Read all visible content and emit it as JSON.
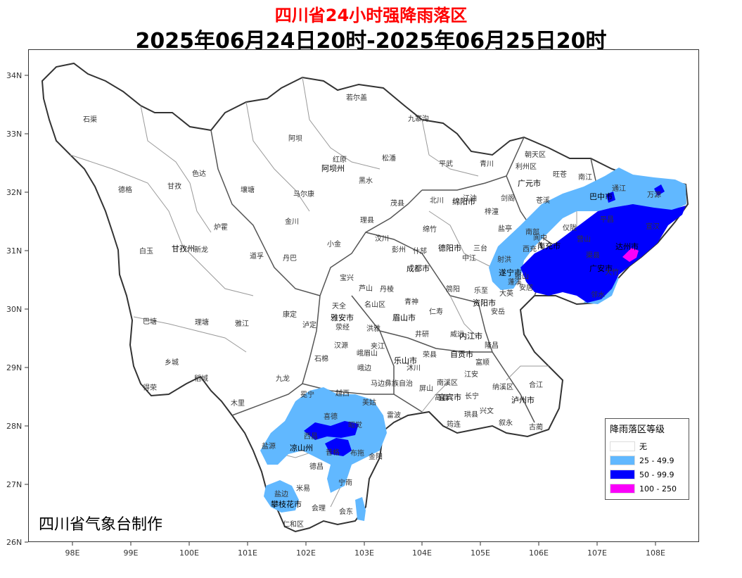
{
  "header": {
    "title": "四川省24小时强降雨落区",
    "period": "2025年06月24日20时-2025年06月25日20时"
  },
  "axes": {
    "lat_labels": [
      "34N",
      "33N",
      "32N",
      "31N",
      "30N",
      "29N",
      "28N",
      "27N",
      "26N"
    ],
    "lon_labels": [
      "98E",
      "99E",
      "100E",
      "101E",
      "102E",
      "103E",
      "104E",
      "105E",
      "106E",
      "107E",
      "108E"
    ]
  },
  "credit": "四川省气象台制作",
  "legend": {
    "title": "降雨落区等级",
    "items": [
      {
        "label": "无",
        "color": "#ffffff"
      },
      {
        "label": "25 - 49.9",
        "color": "#61b8ff"
      },
      {
        "label": "50 - 99.9",
        "color": "#0000fe"
      },
      {
        "label": "100 - 250",
        "color": "#fa00fa"
      }
    ]
  },
  "cities": [
    "阿坝州",
    "甘孜州",
    "雅安市",
    "凉山州",
    "攀枝花市",
    "成都市",
    "德阳市",
    "绵阳市",
    "广元市",
    "巴中市",
    "达州市",
    "南充市",
    "遂宁市",
    "资阳市",
    "内江市",
    "自贡市",
    "泸州市",
    "宜宾市",
    "乐山市",
    "眉山市",
    "广安市"
  ],
  "places": [
    "石渠",
    "若尔盖",
    "九寨沟",
    "阿坝",
    "红原",
    "松潘",
    "平武",
    "青川",
    "朝天区",
    "利州区",
    "旺苍",
    "南江",
    "通江",
    "万源",
    "德格",
    "甘孜",
    "色达",
    "壤塘",
    "马尔康",
    "黑水",
    "茂县",
    "北川",
    "江油",
    "梓潼",
    "剑阁",
    "苍溪",
    "阆中",
    "南部",
    "仪陇",
    "平昌",
    "宣汉",
    "白玉",
    "新龙",
    "炉霍",
    "道孚",
    "丹巴",
    "金川",
    "小金",
    "理县",
    "汶川",
    "彭州",
    "什邡",
    "绵竹",
    "中江",
    "三台",
    "盐亭",
    "射洪",
    "蓬溪",
    "西充",
    "营山",
    "渠县",
    "大竹",
    "邻水",
    "巴塘",
    "理塘",
    "雅江",
    "康定",
    "泸定",
    "天全",
    "宝兴",
    "芦山",
    "名山区",
    "荥经",
    "汉源",
    "石棉",
    "洪雅",
    "丹棱",
    "青神",
    "井研",
    "夹江",
    "峨眉山",
    "沐川",
    "马边彝族自治",
    "峨边",
    "屏山",
    "简阳",
    "乐至",
    "安岳",
    "安居",
    "船山",
    "大英",
    "仁寿",
    "威远",
    "隆昌",
    "荣县",
    "富顺",
    "江安",
    "纳溪区",
    "叙永",
    "古蔺",
    "合江",
    "南溪区",
    "长宁",
    "兴文",
    "珙县",
    "高县",
    "筠连",
    "乡城",
    "稻城",
    "得荣",
    "九龙",
    "木里",
    "冕宁",
    "越西",
    "美姑",
    "雷波",
    "喜德",
    "昭觉",
    "布拖",
    "金阳",
    "西昌",
    "宁南",
    "普格",
    "德昌",
    "盐源",
    "米易",
    "会理",
    "会东",
    "盐边",
    "仁和区"
  ]
}
